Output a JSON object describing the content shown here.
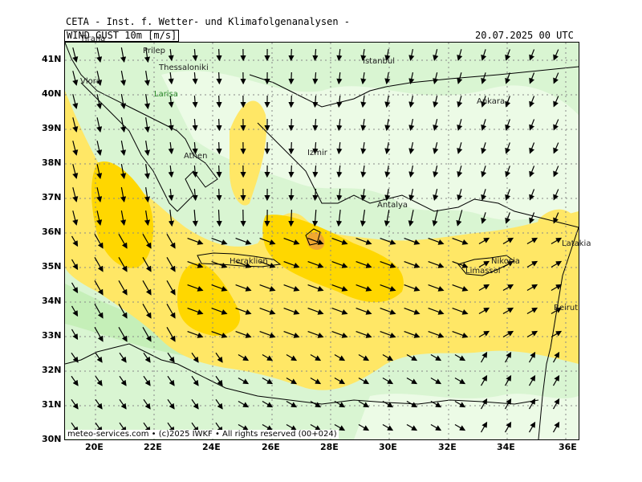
{
  "header": {
    "institute": "CETA - Inst. f. Wetter- und Klimafolgenanalysen -",
    "field": "WIND GUST 10m [m/s]",
    "valid_time": "20.07.2025 00 UTC"
  },
  "footer": "meteo-services.com • (c)2025 IWKF • All rights reserved (00+024)",
  "axes": {
    "lat_labels": [
      "41N",
      "40N",
      "39N",
      "38N",
      "37N",
      "36N",
      "35N",
      "34N",
      "33N",
      "32N",
      "31N",
      "30N"
    ],
    "lon_labels": [
      "20E",
      "22E",
      "24E",
      "26E",
      "28E",
      "30E",
      "32E",
      "34E",
      "36E"
    ]
  },
  "cities": [
    "Tirana",
    "Prilep",
    "Thessaloniki",
    "Vlora",
    "Larisa",
    "Istanbul",
    "Ankara",
    "Izmir",
    "Athen",
    "Antalya",
    "Heraklion",
    "Limassol",
    "Nikosia",
    "Latakia",
    "Beirut"
  ],
  "colors": {
    "calm": "#e6fae0",
    "light": "#c8f0bc",
    "moderate": "#ffe766",
    "strong": "#ffd700",
    "gale": "#f0a830"
  }
}
